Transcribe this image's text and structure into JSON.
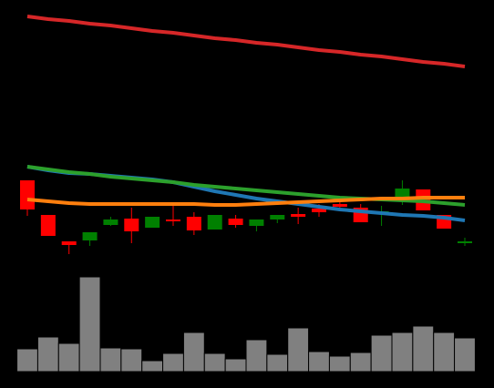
{
  "chart_data": [
    {
      "type": "candlestick",
      "categories": [
        null,
        null,
        null,
        null,
        null,
        null,
        null,
        null,
        null,
        null,
        null,
        null,
        null,
        null,
        null,
        null,
        null,
        null,
        null,
        null,
        null,
        null
      ],
      "open": [
        102,
        64,
        35,
        36,
        53,
        60,
        50,
        59,
        62,
        48,
        60,
        52,
        59,
        65,
        71,
        76,
        72,
        66,
        82,
        92,
        64,
        33
      ],
      "high": [
        102,
        64,
        35,
        45,
        62,
        72,
        62,
        75,
        67,
        64,
        64,
        59,
        64,
        72,
        76,
        79,
        76,
        74,
        102,
        92,
        64,
        39
      ],
      "low": [
        63,
        41,
        21,
        30,
        52,
        33,
        50,
        52,
        42,
        48,
        50,
        46,
        55,
        54,
        62,
        70,
        56,
        52,
        75,
        69,
        49,
        30
      ],
      "close": [
        70,
        41,
        31,
        45,
        59,
        46,
        62,
        57,
        47,
        64,
        53,
        59,
        64,
        62,
        67,
        73,
        56,
        68,
        93,
        69,
        49,
        35
      ],
      "up_color": "#008000",
      "down_color": "#ff0000",
      "ylim": [
        0,
        300
      ],
      "series": [
        {
          "color": "#d62728",
          "values": [
            282,
            279,
            277,
            274,
            272,
            269,
            266,
            264,
            261,
            258,
            256,
            253,
            251,
            248,
            245,
            243,
            240,
            238,
            235,
            232,
            230,
            227
          ]
        },
        {
          "color": "#1f77b4",
          "values": [
            117,
            113,
            110,
            109,
            107,
            105,
            103,
            100,
            95,
            90,
            86,
            82,
            79,
            76,
            73,
            70,
            68,
            66,
            64,
            63,
            61,
            58
          ]
        },
        {
          "color": "#2ca02c",
          "values": [
            117,
            114,
            111,
            109,
            106,
            104,
            102,
            100,
            97,
            95,
            93,
            91,
            89,
            87,
            85,
            83,
            82,
            81,
            80,
            79,
            77,
            75
          ]
        },
        {
          "color": "#ff7f0e",
          "values": [
            81,
            79,
            77,
            76,
            76,
            76,
            76,
            76,
            76,
            75,
            75,
            76,
            77,
            78,
            79,
            80,
            81,
            82,
            82,
            83,
            83,
            83
          ]
        }
      ]
    },
    {
      "type": "bar",
      "categories": [
        null,
        null,
        null,
        null,
        null,
        null,
        null,
        null,
        null,
        null,
        null,
        null,
        null,
        null,
        null,
        null,
        null,
        null,
        null,
        null,
        null,
        null
      ],
      "values": [
        25,
        38,
        31,
        104,
        26,
        25,
        12,
        20,
        43,
        20,
        14,
        35,
        19,
        48,
        22,
        17,
        21,
        40,
        43,
        50,
        43,
        37
      ],
      "color": "#808080",
      "ylim": [
        0,
        108
      ]
    }
  ]
}
